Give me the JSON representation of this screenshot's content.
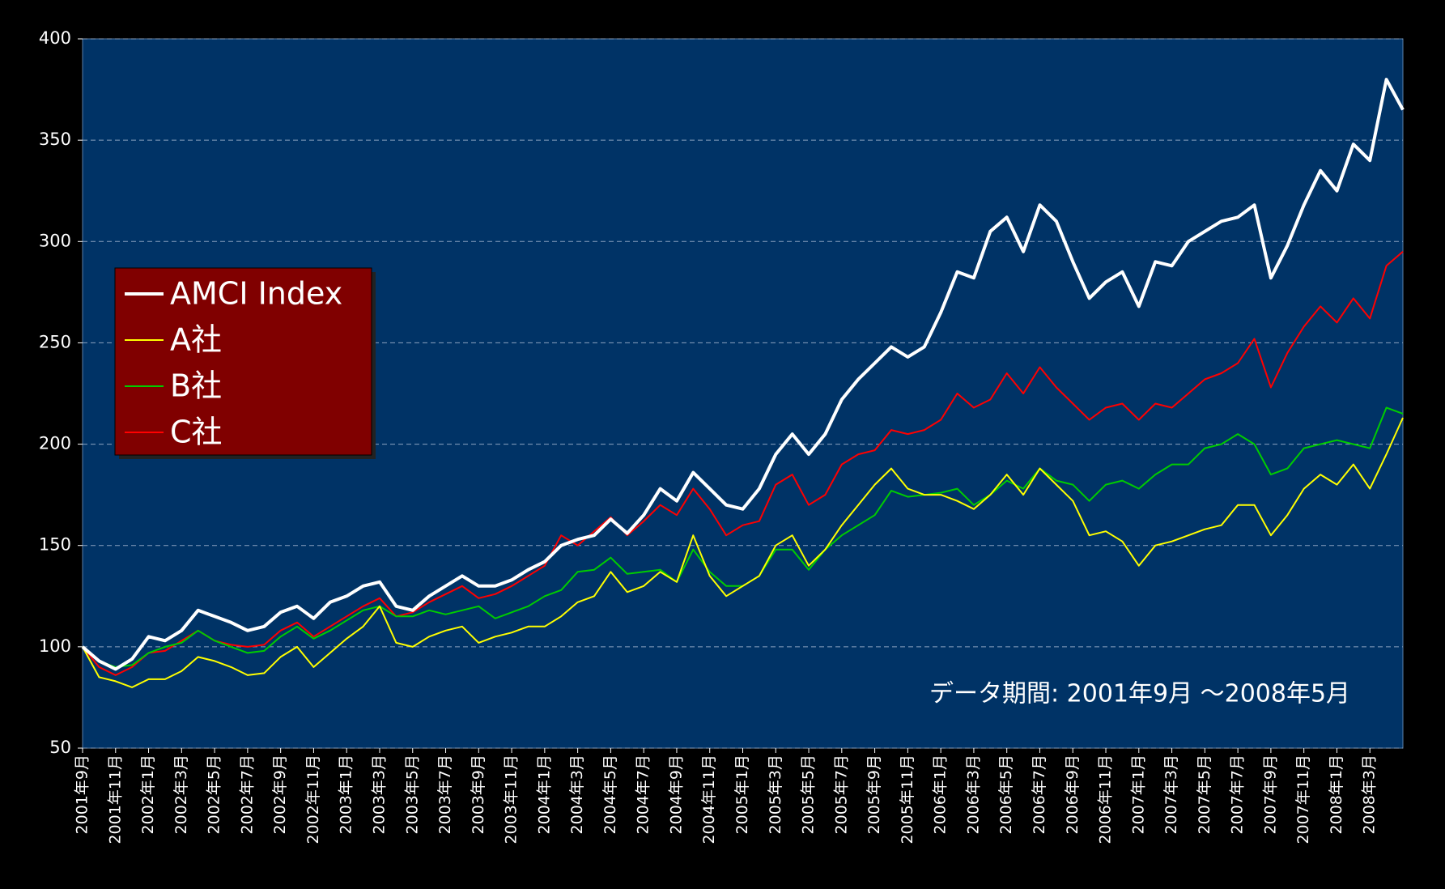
{
  "chart_data": {
    "type": "line",
    "annotation": "データ期間: 2001年9月 ～2008年5月",
    "categories": [
      "2001年9月",
      null,
      "2001年11月",
      null,
      "2002年1月",
      null,
      "2002年3月",
      null,
      "2002年5月",
      null,
      "2002年7月",
      null,
      "2002年9月",
      null,
      "2002年11月",
      null,
      "2003年1月",
      null,
      "2003年3月",
      null,
      "2003年5月",
      null,
      "2003年7月",
      null,
      "2003年9月",
      null,
      "2003年11月",
      null,
      "2004年1月",
      null,
      "2004年3月",
      null,
      "2004年5月",
      null,
      "2004年7月",
      null,
      "2004年9月",
      null,
      "2004年11月",
      null,
      "2005年1月",
      null,
      "2005年3月",
      null,
      "2005年5月",
      null,
      "2005年7月",
      null,
      "2005年9月",
      null,
      "2005年11月",
      null,
      "2006年1月",
      null,
      "2006年3月",
      null,
      "2006年5月",
      null,
      "2006年7月",
      null,
      "2006年9月",
      null,
      "2006年11月",
      null,
      "2007年1月",
      null,
      "2007年3月",
      null,
      "2007年5月",
      null,
      "2007年7月",
      null,
      "2007年9月",
      null,
      "2007年11月",
      null,
      "2008年1月",
      null,
      "2008年3月",
      null,
      null
    ],
    "series": [
      {
        "name": "AMCI Index",
        "color": "#ffffff",
        "values": [
          100,
          93,
          89,
          94,
          105,
          103,
          108,
          118,
          115,
          112,
          108,
          110,
          117,
          120,
          114,
          122,
          125,
          130,
          132,
          120,
          118,
          125,
          130,
          135,
          130,
          130,
          133,
          138,
          142,
          150,
          153,
          155,
          163,
          156,
          165,
          178,
          172,
          186,
          178,
          170,
          168,
          178,
          195,
          205,
          195,
          205,
          222,
          232,
          240,
          248,
          243,
          248,
          265,
          285,
          282,
          305,
          312,
          295,
          318,
          310,
          290,
          272,
          280,
          285,
          268,
          290,
          288,
          300,
          305,
          310,
          312,
          318,
          282,
          298,
          318,
          335,
          325,
          348,
          340,
          380,
          365
        ]
      },
      {
        "name": "A社",
        "color": "#ffff00",
        "values": [
          100,
          85,
          83,
          80,
          84,
          84,
          88,
          95,
          93,
          90,
          86,
          87,
          95,
          100,
          90,
          97,
          104,
          110,
          120,
          102,
          100,
          105,
          108,
          110,
          102,
          105,
          107,
          110,
          110,
          115,
          122,
          125,
          137,
          127,
          130,
          137,
          132,
          155,
          135,
          125,
          130,
          135,
          150,
          155,
          140,
          148,
          160,
          170,
          180,
          188,
          178,
          175,
          175,
          172,
          168,
          175,
          185,
          175,
          188,
          180,
          172,
          155,
          157,
          152,
          140,
          150,
          152,
          155,
          158,
          160,
          170,
          170,
          155,
          165,
          178,
          185,
          180,
          190,
          178,
          195,
          213
        ]
      },
      {
        "name": "B社",
        "color": "#00cc00",
        "values": [
          100,
          93,
          90,
          91,
          97,
          100,
          102,
          108,
          103,
          100,
          97,
          98,
          105,
          110,
          104,
          108,
          113,
          118,
          120,
          115,
          115,
          118,
          116,
          118,
          120,
          114,
          117,
          120,
          125,
          128,
          137,
          138,
          144,
          136,
          137,
          138,
          132,
          148,
          137,
          130,
          130,
          135,
          148,
          148,
          138,
          148,
          155,
          160,
          165,
          177,
          174,
          175,
          176,
          178,
          170,
          175,
          182,
          178,
          188,
          182,
          180,
          172,
          180,
          182,
          178,
          185,
          190,
          190,
          198,
          200,
          205,
          200,
          185,
          188,
          198,
          200,
          202,
          200,
          198,
          218,
          215
        ]
      },
      {
        "name": "C社",
        "color": "#ff0000",
        "values": [
          100,
          90,
          86,
          90,
          97,
          98,
          103,
          108,
          103,
          101,
          100,
          101,
          108,
          112,
          105,
          110,
          115,
          120,
          124,
          115,
          117,
          122,
          126,
          130,
          124,
          126,
          130,
          135,
          140,
          155,
          150,
          157,
          164,
          155,
          162,
          170,
          165,
          178,
          168,
          155,
          160,
          162,
          180,
          185,
          170,
          175,
          190,
          195,
          197,
          207,
          205,
          207,
          212,
          225,
          218,
          222,
          235,
          225,
          238,
          228,
          220,
          212,
          218,
          220,
          212,
          220,
          218,
          225,
          232,
          235,
          240,
          252,
          228,
          245,
          258,
          268,
          260,
          272,
          262,
          288,
          295
        ]
      }
    ],
    "ylim": [
      50,
      400
    ],
    "yticks": [
      50,
      100,
      150,
      200,
      250,
      300,
      350,
      400
    ],
    "grid": true,
    "legend": "upper left",
    "background": "#003366",
    "legend_background": "#800000"
  }
}
